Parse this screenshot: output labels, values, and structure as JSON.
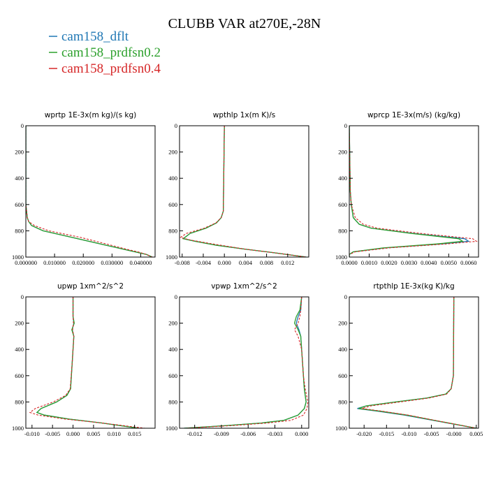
{
  "page": {
    "title": "CLUBB VAR at270E,-28N",
    "legend": [
      {
        "name": "cam158_dflt",
        "color": "#1f77b4"
      },
      {
        "name": "cam158_prdfsn0.2",
        "color": "#2ca02c"
      },
      {
        "name": "cam158_prdfsn0.4",
        "color": "#d62728"
      }
    ]
  },
  "chart_data": [
    {
      "type": "line",
      "title": "wprtp  1E-3x(m kg)/(s kg)",
      "xlim": [
        0.0,
        0.045
      ],
      "ylim": [
        1000,
        0
      ],
      "xticks": [
        0.0,
        0.01,
        0.02,
        0.03,
        0.04
      ],
      "xtick_labels": [
        "0.000000",
        "0.010000",
        "0.020000",
        "0.030000",
        "0.040000"
      ],
      "yticks": [
        0,
        200,
        400,
        600,
        800,
        1000
      ],
      "series": [
        {
          "name": "cam158_dflt",
          "y": [
            0,
            600,
            700,
            730,
            760,
            800,
            850,
            900,
            940,
            960,
            980,
            1000
          ],
          "x": [
            0,
            0,
            0.0005,
            0.001,
            0.002,
            0.006,
            0.016,
            0.026,
            0.034,
            0.038,
            0.042,
            0.044
          ]
        },
        {
          "name": "cam158_prdfsn0.2",
          "y": [
            0,
            600,
            700,
            730,
            760,
            800,
            850,
            900,
            940,
            960,
            980,
            1000
          ],
          "x": [
            0,
            0,
            0.0005,
            0.001,
            0.002,
            0.006,
            0.016,
            0.026,
            0.034,
            0.038,
            0.042,
            0.044
          ]
        },
        {
          "name": "cam158_prdfsn0.4",
          "y": [
            0,
            600,
            700,
            730,
            760,
            800,
            850,
            900,
            940,
            960,
            980,
            1000
          ],
          "x": [
            0,
            0,
            0.0005,
            0.001,
            0.003,
            0.008,
            0.019,
            0.028,
            0.035,
            0.039,
            0.042,
            0.044
          ]
        }
      ]
    },
    {
      "type": "line",
      "title": "wpthlp  1x(m K)/s",
      "xlim": [
        -0.0085,
        0.016
      ],
      "ylim": [
        1000,
        0
      ],
      "xticks": [
        -0.008,
        -0.004,
        0.0,
        0.004,
        0.008,
        0.012
      ],
      "xtick_labels": [
        "-0.008",
        "-0.004",
        "0.000",
        "0.004",
        "0.008",
        "0.012"
      ],
      "yticks": [
        0,
        200,
        400,
        600,
        800,
        1000
      ],
      "series": [
        {
          "name": "cam158_dflt",
          "y": [
            0,
            650,
            700,
            740,
            780,
            820,
            860,
            880,
            910,
            940,
            970,
            1000
          ],
          "x": [
            0,
            -0.0002,
            -0.0006,
            -0.0015,
            -0.0035,
            -0.0065,
            -0.0078,
            -0.0055,
            -0.0015,
            0.004,
            0.01,
            0.0155
          ]
        },
        {
          "name": "cam158_prdfsn0.2",
          "y": [
            0,
            650,
            700,
            740,
            780,
            820,
            860,
            880,
            910,
            940,
            970,
            1000
          ],
          "x": [
            0,
            -0.0002,
            -0.0006,
            -0.0015,
            -0.0035,
            -0.0065,
            -0.0078,
            -0.0055,
            -0.0015,
            0.004,
            0.01,
            0.0155
          ]
        },
        {
          "name": "cam158_prdfsn0.4",
          "y": [
            0,
            650,
            700,
            740,
            780,
            820,
            850,
            870,
            900,
            940,
            970,
            1000
          ],
          "x": [
            0,
            -0.0002,
            -0.0006,
            -0.0016,
            -0.0038,
            -0.0072,
            -0.0083,
            -0.0065,
            -0.0022,
            0.004,
            0.01,
            0.0155
          ]
        }
      ]
    },
    {
      "type": "line",
      "title": "wprcp  1E-3x(m/s) (kg/kg)",
      "xlim": [
        0.0,
        0.0065
      ],
      "ylim": [
        1000,
        0
      ],
      "xticks": [
        0.0,
        0.001,
        0.002,
        0.003,
        0.004,
        0.005,
        0.006
      ],
      "xtick_labels": [
        "0.0000",
        "0.0010",
        "0.0020",
        "0.0030",
        "0.0040",
        "0.0050",
        "0.0060"
      ],
      "yticks": [
        0,
        200,
        400,
        600,
        800,
        1000
      ],
      "series": [
        {
          "name": "cam158_dflt",
          "y": [
            0,
            500,
            600,
            700,
            750,
            780,
            820,
            860,
            880,
            900,
            930,
            960,
            980,
            1000
          ],
          "x": [
            0,
            5e-05,
            0.0001,
            0.0002,
            0.0005,
            0.0011,
            0.0032,
            0.0058,
            0.006,
            0.0046,
            0.0018,
            0.0002,
            0.0,
            0.0
          ]
        },
        {
          "name": "cam158_prdfsn0.2",
          "y": [
            0,
            500,
            600,
            700,
            750,
            780,
            820,
            860,
            880,
            900,
            930,
            960,
            980,
            1000
          ],
          "x": [
            0,
            5e-05,
            0.0001,
            0.0002,
            0.0005,
            0.0011,
            0.0031,
            0.0055,
            0.0057,
            0.0044,
            0.0017,
            0.0002,
            0.0,
            0.0
          ]
        },
        {
          "name": "cam158_prdfsn0.4",
          "y": [
            0,
            500,
            600,
            700,
            750,
            780,
            820,
            860,
            880,
            900,
            930,
            960,
            980,
            1000
          ],
          "x": [
            0,
            5e-05,
            0.0001,
            0.0003,
            0.0007,
            0.0014,
            0.0036,
            0.0062,
            0.0064,
            0.0049,
            0.002,
            0.0003,
            0.0,
            0.0
          ]
        }
      ]
    },
    {
      "type": "line",
      "title": "upwp  1xm^2/s^2",
      "xlim": [
        -0.0115,
        0.02
      ],
      "ylim": [
        1000,
        0
      ],
      "xticks": [
        -0.01,
        -0.005,
        0.0,
        0.005,
        0.01,
        0.015
      ],
      "xtick_labels": [
        "-0.010",
        "-0.005",
        "0.000",
        "0.005",
        "0.010",
        "0.015"
      ],
      "yticks": [
        0,
        200,
        400,
        600,
        800,
        1000
      ],
      "series": [
        {
          "name": "cam158_dflt",
          "y": [
            0,
            150,
            200,
            250,
            300,
            400,
            500,
            700,
            750,
            800,
            850,
            880,
            900,
            930,
            960,
            1000
          ],
          "x": [
            0,
            0.0,
            0.0002,
            -0.0002,
            0.0002,
            0.0,
            -0.0002,
            -0.0006,
            -0.0015,
            -0.004,
            -0.0078,
            -0.0088,
            -0.007,
            -0.001,
            0.007,
            0.016
          ]
        },
        {
          "name": "cam158_prdfsn0.2",
          "y": [
            0,
            150,
            200,
            250,
            300,
            400,
            500,
            700,
            750,
            800,
            850,
            880,
            900,
            930,
            960,
            1000
          ],
          "x": [
            0,
            0.0,
            0.0003,
            -0.0003,
            0.0002,
            0.0,
            -0.0002,
            -0.0006,
            -0.0015,
            -0.004,
            -0.0078,
            -0.0088,
            -0.007,
            -0.001,
            0.007,
            0.016
          ]
        },
        {
          "name": "cam158_prdfsn0.4",
          "y": [
            0,
            150,
            200,
            250,
            300,
            400,
            500,
            700,
            750,
            800,
            850,
            880,
            900,
            930,
            960,
            1000
          ],
          "x": [
            0,
            0.0,
            0.0001,
            -0.0001,
            0.0002,
            0.0,
            -0.0002,
            -0.0007,
            -0.0018,
            -0.0048,
            -0.0092,
            -0.0105,
            -0.0085,
            -0.002,
            0.007,
            0.0175
          ]
        }
      ]
    },
    {
      "type": "line",
      "title": "vpwp  1xm^2/s^2",
      "xlim": [
        -0.0137,
        0.0008
      ],
      "ylim": [
        1000,
        0
      ],
      "xticks": [
        -0.012,
        -0.009,
        -0.006,
        -0.003,
        0.0
      ],
      "xtick_labels": [
        "-0.012",
        "-0.009",
        "-0.006",
        "-0.003",
        "0.000"
      ],
      "yticks": [
        0,
        200,
        400,
        600,
        800,
        1000
      ],
      "series": [
        {
          "name": "cam158_dflt",
          "y": [
            0,
            100,
            150,
            200,
            250,
            300,
            400,
            600,
            700,
            800,
            850,
            900,
            940,
            960,
            980,
            1000
          ],
          "x": [
            0,
            -0.0001,
            -0.0004,
            -0.0006,
            -0.0003,
            -0.0001,
            0.0,
            0.0002,
            0.0003,
            0.0005,
            0.0003,
            -0.0004,
            -0.002,
            -0.0045,
            -0.0085,
            -0.0132
          ]
        },
        {
          "name": "cam158_prdfsn0.2",
          "y": [
            0,
            100,
            150,
            200,
            250,
            300,
            400,
            600,
            700,
            800,
            850,
            900,
            940,
            960,
            980,
            1000
          ],
          "x": [
            0,
            -0.0002,
            -0.0006,
            -0.0008,
            -0.0004,
            -0.0001,
            0.0,
            0.0002,
            0.0003,
            0.0005,
            0.0003,
            -0.0004,
            -0.002,
            -0.0045,
            -0.0085,
            -0.0132
          ]
        },
        {
          "name": "cam158_prdfsn0.4",
          "y": [
            0,
            100,
            150,
            200,
            250,
            300,
            400,
            600,
            700,
            800,
            850,
            900,
            940,
            960,
            980,
            1000
          ],
          "x": [
            0,
            -0.0001,
            -0.0002,
            -0.0004,
            -0.0008,
            -0.0004,
            0.0,
            0.0002,
            0.0004,
            0.0007,
            0.0006,
            0.0002,
            -0.0012,
            -0.0038,
            -0.0078,
            -0.013
          ]
        }
      ]
    },
    {
      "type": "line",
      "title": "rtpthlp  1E-3x(kg K)/kg",
      "xlim": [
        -0.0233,
        0.0055
      ],
      "ylim": [
        1000,
        0
      ],
      "xticks": [
        -0.02,
        -0.015,
        -0.01,
        -0.005,
        0.0,
        0.005
      ],
      "xtick_labels": [
        "-0.020",
        "-0.015",
        "-0.010",
        "-0.005",
        "-0.000",
        "0.005"
      ],
      "yticks": [
        0,
        200,
        400,
        600,
        800,
        1000
      ],
      "series": [
        {
          "name": "cam158_dflt",
          "y": [
            0,
            600,
            700,
            740,
            770,
            800,
            830,
            850,
            870,
            900,
            950,
            1000
          ],
          "x": [
            0,
            -0.0001,
            -0.0006,
            -0.0018,
            -0.006,
            -0.013,
            -0.0195,
            -0.0215,
            -0.017,
            -0.011,
            -0.003,
            0.005
          ]
        },
        {
          "name": "cam158_prdfsn0.2",
          "y": [
            0,
            600,
            700,
            740,
            770,
            800,
            830,
            850,
            870,
            900,
            950,
            1000
          ],
          "x": [
            0,
            -0.0001,
            -0.0006,
            -0.0018,
            -0.006,
            -0.013,
            -0.0195,
            -0.0212,
            -0.0165,
            -0.0105,
            -0.0028,
            0.005
          ]
        },
        {
          "name": "cam158_prdfsn0.4",
          "y": [
            0,
            600,
            700,
            740,
            770,
            800,
            830,
            850,
            870,
            900,
            950,
            1000
          ],
          "x": [
            0,
            -0.0001,
            -0.0006,
            -0.0016,
            -0.0055,
            -0.012,
            -0.0185,
            -0.0205,
            -0.016,
            -0.0102,
            -0.0027,
            0.005
          ]
        }
      ]
    }
  ]
}
